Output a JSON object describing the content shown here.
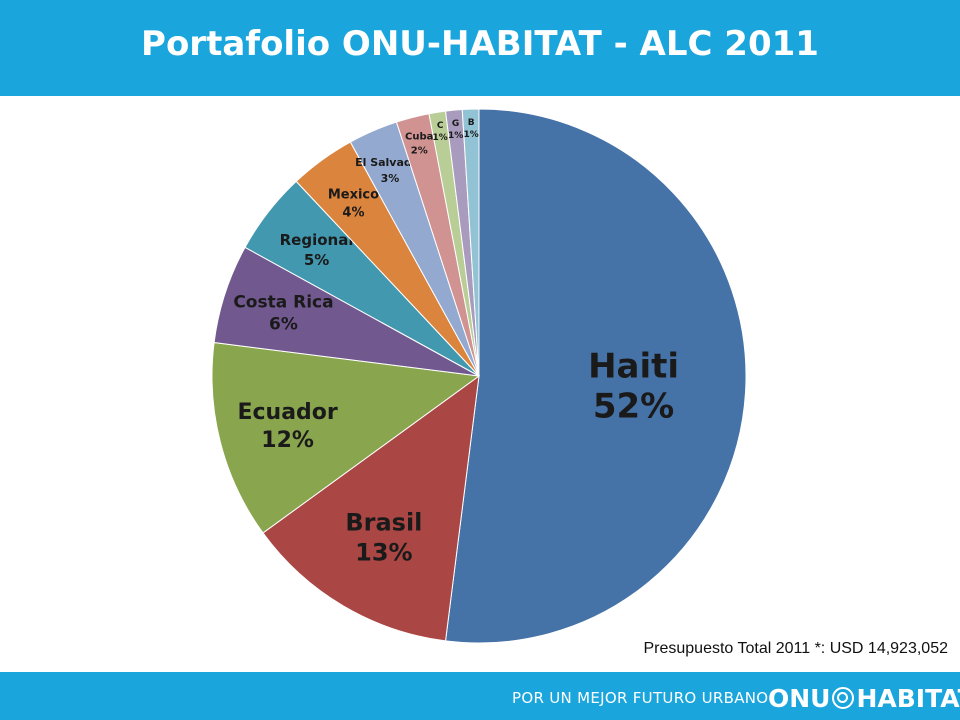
{
  "header": {
    "title": "Portafolio ONU-HABITAT - ALC 2011"
  },
  "footer": {
    "budget_text": "Presupuesto Total 2011 *:  USD 14,923,052",
    "slogan": "POR UN MEJOR FUTURO URBANO",
    "logo_left": "ONU",
    "logo_right": "HABITAT",
    "logo_icon": "un-emblem-icon"
  },
  "colors": {
    "bar": "#1aa6dd",
    "text_on_bar": "#ffffff"
  },
  "chart_data": {
    "type": "pie",
    "title": "",
    "start_angle_deg": 0,
    "direction": "clockwise",
    "slices": [
      {
        "label": "Haiti",
        "value_label": "52%",
        "value": 52,
        "color": "#4572a7"
      },
      {
        "label": "Brasil",
        "value_label": "13%",
        "value": 13,
        "color": "#aa4643"
      },
      {
        "label": "Ecuador",
        "value_label": "12%",
        "value": 12,
        "color": "#89a54e"
      },
      {
        "label": "Costa Rica",
        "value_label": "6%",
        "value": 6,
        "color": "#71588f"
      },
      {
        "label": "Regional",
        "value_label": "5%",
        "value": 5,
        "color": "#4198af"
      },
      {
        "label": "Mexico",
        "value_label": "4%",
        "value": 4,
        "color": "#db843d"
      },
      {
        "label": "El Salvador",
        "value_label": "3%",
        "value": 3,
        "color": "#93a9cf"
      },
      {
        "label": "Cuba",
        "value_label": "2%",
        "value": 2,
        "color": "#d19392"
      },
      {
        "label": "C",
        "value_label": "1%",
        "value": 1,
        "color": "#b9cd96"
      },
      {
        "label": "G",
        "value_label": "1%",
        "value": 1,
        "color": "#a99bbd"
      },
      {
        "label": "B",
        "value_label": "1%",
        "value": 1,
        "color": "#92c3d4"
      }
    ]
  }
}
